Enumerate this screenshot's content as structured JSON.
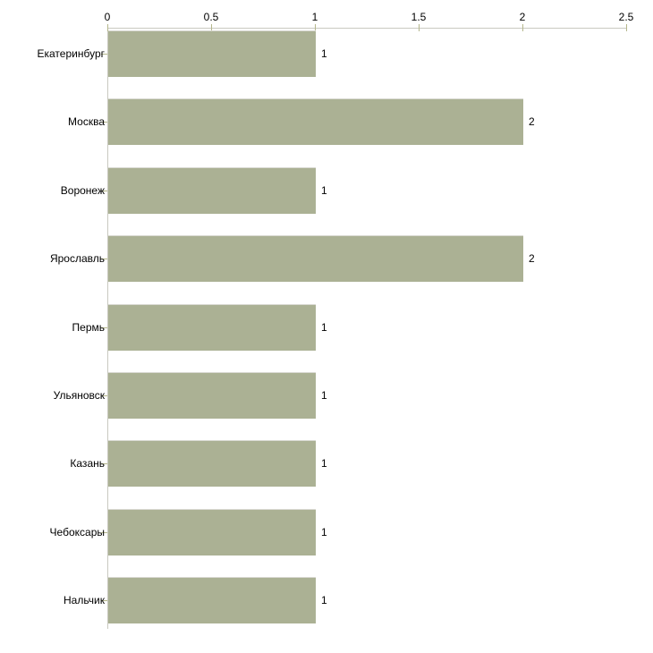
{
  "chart_data": {
    "type": "bar",
    "orientation": "horizontal",
    "title": "",
    "categories": [
      "Екатеринбург",
      "Москва",
      "Воронеж",
      "Ярославль",
      "Пермь",
      "Ульяновск",
      "Казань",
      "Чебоксары",
      "Нальчик"
    ],
    "values": [
      1,
      2,
      1,
      2,
      1,
      1,
      1,
      1,
      1
    ],
    "value_labels": [
      "1",
      "2",
      "1",
      "2",
      "1",
      "1",
      "1",
      "1",
      "1"
    ],
    "x_ticks": [
      0,
      0.5,
      1,
      1.5,
      2,
      2.5
    ],
    "x_tick_labels": [
      "0",
      "0.5",
      "1",
      "1.5",
      "2",
      "2.5"
    ],
    "xlim": [
      0,
      2.5
    ],
    "axis_position": "top",
    "grid": false,
    "legend": false,
    "colors": {
      "bar": "#abb194",
      "bar_edge": "#d9d9d2",
      "axis_line": "#c9c9c0",
      "tick": "#b5b78c",
      "text": "#000000",
      "background": "#ffffff"
    }
  }
}
